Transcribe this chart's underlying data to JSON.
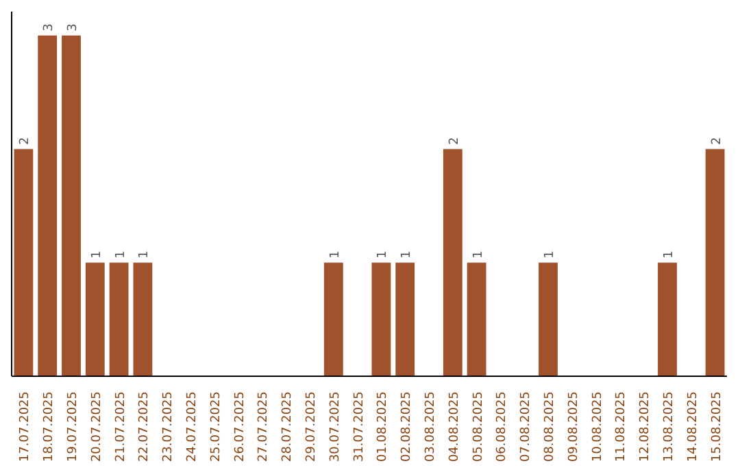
{
  "chart_data": {
    "type": "bar",
    "categories": [
      "17.07.2025",
      "18.07.2025",
      "19.07.2025",
      "20.07.2025",
      "21.07.2025",
      "22.07.2025",
      "23.07.2025",
      "24.07.2025",
      "25.07.2025",
      "26.07.2025",
      "27.07.2025",
      "28.07.2025",
      "29.07.2025",
      "30.07.2025",
      "31.07.2025",
      "01.08.2025",
      "02.08.2025",
      "03.08.2025",
      "04.08.2025",
      "05.08.2025",
      "06.08.2025",
      "07.08.2025",
      "08.08.2025",
      "09.08.2025",
      "10.08.2025",
      "11.08.2025",
      "12.08.2025",
      "13.08.2025",
      "14.08.2025",
      "15.08.2025"
    ],
    "values": [
      2,
      3,
      3,
      1,
      1,
      1,
      0,
      0,
      0,
      0,
      0,
      0,
      0,
      1,
      0,
      1,
      1,
      0,
      2,
      1,
      0,
      0,
      1,
      0,
      0,
      0,
      0,
      1,
      0,
      2
    ],
    "value_labels": [
      "2",
      "3",
      "3",
      "1",
      "1",
      "1",
      null,
      null,
      null,
      null,
      null,
      null,
      null,
      "1",
      null,
      "1",
      "1",
      null,
      "2",
      "1",
      null,
      null,
      "1",
      null,
      null,
      null,
      null,
      "1",
      null,
      "2"
    ],
    "color": "#a0522d",
    "grid": false,
    "tick_labels": "x"
  }
}
